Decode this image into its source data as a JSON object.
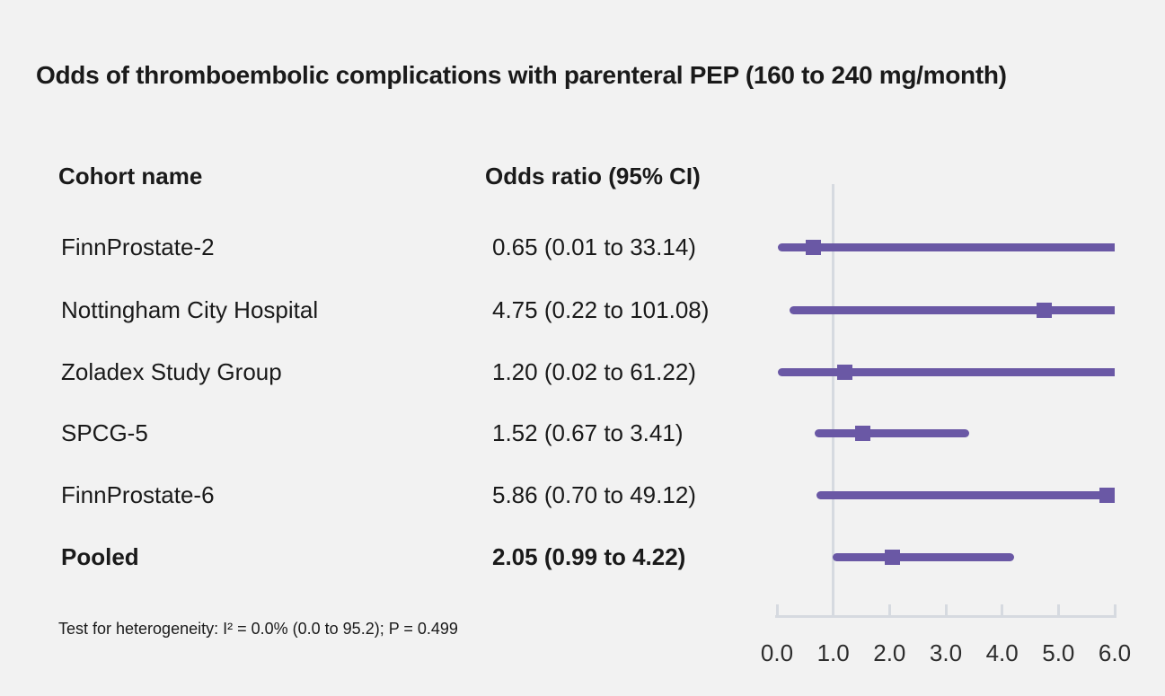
{
  "title": "Odds of thromboembolic complications with parenteral PEP (160 to 240 mg/month)",
  "columns": {
    "cohort": "Cohort name",
    "odds": "Odds ratio (95% CI)"
  },
  "footnote": "Test for heterogeneity: I² = 0.0% (0.0 to 95.2); P = 0.499",
  "colors": {
    "background": "#f2f2f2",
    "accent_purple": "#6a58a5",
    "gridline": "#d6dae0",
    "text": "#1a1a1a"
  },
  "chart_data": {
    "type": "scatter",
    "subtype": "forest-plot",
    "title": "Odds of thromboembolic complications with parenteral PEP (160 to 240 mg/month)",
    "xlabel": "Odds ratio",
    "legend": "none",
    "axis": {
      "min": 0,
      "max": 6,
      "reference_line": 1.0,
      "tick_labels": [
        "0.0",
        "1.0",
        "2.0",
        "3.0",
        "4.0",
        "5.0",
        "6.0"
      ]
    },
    "rows": [
      {
        "label": "FinnProstate-2",
        "or": 0.65,
        "ci_low": 0.01,
        "ci_high": 33.14,
        "display": "0.65 (0.01 to 33.14)",
        "bold": false
      },
      {
        "label": "Nottingham City Hospital",
        "or": 4.75,
        "ci_low": 0.22,
        "ci_high": 101.08,
        "display": "4.75 (0.22 to 101.08)",
        "bold": false
      },
      {
        "label": "Zoladex Study Group",
        "or": 1.2,
        "ci_low": 0.02,
        "ci_high": 61.22,
        "display": "1.20 (0.02 to 61.22)",
        "bold": false
      },
      {
        "label": "SPCG-5",
        "or": 1.52,
        "ci_low": 0.67,
        "ci_high": 3.41,
        "display": "1.52 (0.67 to 3.41)",
        "bold": false
      },
      {
        "label": "FinnProstate-6",
        "or": 5.86,
        "ci_low": 0.7,
        "ci_high": 49.12,
        "display": "5.86 (0.70 to 49.12)",
        "bold": false
      },
      {
        "label": "Pooled",
        "or": 2.05,
        "ci_low": 0.99,
        "ci_high": 4.22,
        "display": "2.05 (0.99 to 4.22)",
        "bold": true
      }
    ]
  }
}
